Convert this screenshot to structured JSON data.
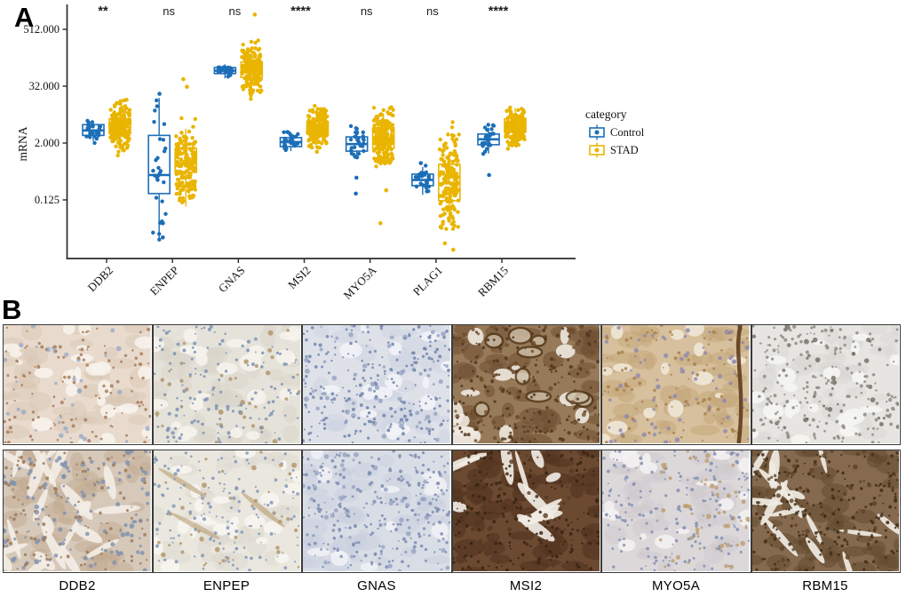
{
  "panel_a": {
    "label": "A",
    "chart_data": {
      "type": "boxplot-jitter",
      "ylabel": "mRNA",
      "yscale": "log2",
      "ytick_labels": [
        "512.000",
        "32.000",
        "2.000",
        "0.125"
      ],
      "ytick_values": [
        512,
        32,
        2,
        0.125
      ],
      "categories": [
        "DDB2",
        "ENPEP",
        "GNAS",
        "MSI2",
        "MYO5A",
        "PLAG1",
        "RBM15"
      ],
      "significance": [
        "**",
        "ns",
        "ns",
        "****",
        "ns",
        "ns",
        "****"
      ],
      "legend_title": "category",
      "legend_position": "right",
      "grid": false,
      "groups": [
        {
          "name": "Control",
          "color": "#1C6EB7",
          "offset": -15,
          "n_points": 28,
          "jitter": 8,
          "stats": [
            {
              "gene": "DDB2",
              "low": 2.2,
              "q1": 2.9,
              "median": 3.7,
              "q3": 4.9,
              "high": 5.8,
              "pt_min": 1.9,
              "pt_max": 6.2,
              "extra": []
            },
            {
              "gene": "ENPEP",
              "low": 0.018,
              "q1": 0.17,
              "median": 0.42,
              "q3": 2.9,
              "high": 18,
              "pt_min": 0.018,
              "pt_max": 22,
              "extra": [
                22,
                0.02,
                0.04
              ]
            },
            {
              "gene": "GNAS",
              "low": 47,
              "q1": 59,
              "median": 68,
              "q3": 79,
              "high": 93,
              "pt_min": 44,
              "pt_max": 105,
              "extra": []
            },
            {
              "gene": "MSI2",
              "low": 1.35,
              "q1": 1.68,
              "median": 2.1,
              "q3": 2.6,
              "high": 3.4,
              "pt_min": 1.1,
              "pt_max": 3.6,
              "extra": []
            },
            {
              "gene": "MYO5A",
              "low": 0.9,
              "q1": 1.35,
              "median": 1.9,
              "q3": 2.7,
              "high": 3.5,
              "pt_min": 0.9,
              "pt_max": 4.6,
              "extra": [
                0.37,
                0.17
              ]
            },
            {
              "gene": "PLAG1",
              "low": 0.16,
              "q1": 0.25,
              "median": 0.33,
              "q3": 0.44,
              "high": 0.62,
              "pt_min": 0.17,
              "pt_max": 0.68,
              "extra": [
                0.75
              ]
            },
            {
              "gene": "RBM15",
              "low": 1.2,
              "q1": 1.84,
              "median": 2.4,
              "q3": 3.1,
              "high": 4.2,
              "pt_min": 1.1,
              "pt_max": 5.0,
              "extra": [
                0.42
              ]
            }
          ]
        },
        {
          "name": "STAD",
          "color": "#E9B500",
          "offset": 15,
          "n_points": 175,
          "jitter": 11,
          "stats": [
            {
              "gene": "DDB2",
              "low": 1.6,
              "q1": 3.2,
              "median": 4.3,
              "q3": 6.5,
              "high": 9.5,
              "pt_min": 1.0,
              "pt_max": 17,
              "extra": [
                14,
                16
              ]
            },
            {
              "gene": "ENPEP",
              "low": 0.09,
              "q1": 0.48,
              "median": 0.75,
              "q3": 1.55,
              "high": 4.0,
              "pt_min": 0.07,
              "pt_max": 20,
              "extra": [
                45,
                31
              ]
            },
            {
              "gene": "GNAS",
              "low": 25,
              "q1": 49,
              "median": 72,
              "q3": 103,
              "high": 200,
              "pt_min": 12,
              "pt_max": 310,
              "extra": [
                1050
              ]
            },
            {
              "gene": "MSI2",
              "low": 1.9,
              "q1": 3.1,
              "median": 4.2,
              "q3": 5.7,
              "high": 8.5,
              "pt_min": 1.2,
              "pt_max": 13,
              "extra": [
                1.3
              ]
            },
            {
              "gene": "MYO5A",
              "low": 0.75,
              "q1": 1.54,
              "median": 2.5,
              "q3": 4.2,
              "high": 8.0,
              "pt_min": 0.6,
              "pt_max": 13,
              "extra": [
                0.04,
                0.2
              ]
            },
            {
              "gene": "PLAG1",
              "low": 0.047,
              "q1": 0.12,
              "median": 0.28,
              "q3": 0.71,
              "high": 1.3,
              "pt_min": 0.03,
              "pt_max": 6.0,
              "extra": [
                0.011,
                0.015
              ]
            },
            {
              "gene": "RBM15",
              "low": 2.0,
              "q1": 3.4,
              "median": 4.7,
              "q3": 6.5,
              "high": 11,
              "pt_min": 1.3,
              "pt_max": 12,
              "extra": []
            }
          ]
        }
      ]
    }
  },
  "panel_b": {
    "label": "B",
    "labels": [
      "DDB2",
      "ENPEP",
      "GNAS",
      "MSI2",
      "MYO5A",
      "RBM15"
    ],
    "tiles": [
      {
        "gene": "DDB2",
        "row": 1,
        "base": "#e8dacd",
        "mottle": "#dac5b4",
        "mottle_n": 42,
        "mottle_op": 0.45,
        "white": "#f7f2ec",
        "white_n": 24,
        "white_elong": false,
        "dots1": "#a87c5c",
        "dots1_n": 120,
        "dots2": "#9aaac6",
        "dots2_n": 35,
        "rings": false,
        "streak": false,
        "diag": false,
        "bias2": false
      },
      {
        "gene": "ENPEP",
        "row": 1,
        "base": "#e5e2d9",
        "mottle": "#d6d3c7",
        "mottle_n": 40,
        "mottle_op": 0.45,
        "white": "#f5f3ec",
        "white_n": 26,
        "white_elong": false,
        "dots1": "#7d92b4",
        "dots1_n": 150,
        "dots2": "#ac9266",
        "dots2_n": 35,
        "rings": false,
        "streak": false,
        "diag": false,
        "bias2": false
      },
      {
        "gene": "GNAS",
        "row": 1,
        "base": "#dfe1e9",
        "mottle": "#cdd2e0",
        "mottle_n": 40,
        "mottle_op": 0.45,
        "white": "#f2f3f7",
        "white_n": 16,
        "white_elong": false,
        "dots1": "#7085ac",
        "dots1_n": 230,
        "dots2": "#93a2c0",
        "dots2_n": 60,
        "rings": false,
        "streak": false,
        "diag": false,
        "bias2": false
      },
      {
        "gene": "MSI2",
        "row": 1,
        "base": "#977a5a",
        "mottle": "#6f5033",
        "mottle_n": 55,
        "mottle_op": 0.55,
        "white": "#efe9e0",
        "white_n": 12,
        "white_elong": false,
        "dots1": "#503720",
        "dots1_n": 190,
        "dots2": "#6d4c2a",
        "dots2_n": 70,
        "rings": true,
        "streak": false,
        "diag": false,
        "bias2": false
      },
      {
        "gene": "MYO5A",
        "row": 1,
        "base": "#d7c09d",
        "mottle": "#c3a578",
        "mottle_n": 48,
        "mottle_op": 0.5,
        "white": "#f0e7d7",
        "white_n": 14,
        "white_elong": false,
        "dots1": "#a87f4e",
        "dots1_n": 100,
        "dots2": "#8f87ac",
        "dots2_n": 80,
        "rings": false,
        "streak": true,
        "diag": false,
        "bias2": false
      },
      {
        "gene": "RBM15",
        "row": 1,
        "base": "#e6e5e2",
        "mottle": "#d7d5d0",
        "mottle_n": 40,
        "mottle_op": 0.45,
        "white": "#f5f5f3",
        "white_n": 20,
        "white_elong": false,
        "dots1": "#8e8b83",
        "dots1_n": 200,
        "dots2": "#6f6a60",
        "dots2_n": 45,
        "rings": false,
        "streak": false,
        "diag": false,
        "bias2": false
      },
      {
        "gene": "DDB2",
        "row": 2,
        "base": "#d6c9ba",
        "mottle": "#c0a991",
        "mottle_n": 48,
        "mottle_op": 0.45,
        "white": "#f3ede5",
        "white_n": 22,
        "white_elong": true,
        "dots1": "#9c7a58",
        "dots1_n": 120,
        "dots2": "#7e90ae",
        "dots2_n": 130,
        "rings": false,
        "streak": false,
        "diag": false,
        "bias2": false
      },
      {
        "gene": "ENPEP",
        "row": 2,
        "base": "#eae7df",
        "mottle": "#dbd8ce",
        "mottle_n": 38,
        "mottle_op": 0.45,
        "white": "#f7f5ef",
        "white_n": 26,
        "white_elong": false,
        "dots1": "#8296b6",
        "dots1_n": 150,
        "dots2": "#b09468",
        "dots2_n": 40,
        "rings": false,
        "streak": false,
        "diag": true,
        "bias2": false
      },
      {
        "gene": "GNAS",
        "row": 2,
        "base": "#d9dde6",
        "mottle": "#c8cfdd",
        "mottle_n": 45,
        "mottle_op": 0.45,
        "white": "#eff1f5",
        "white_n": 14,
        "white_elong": false,
        "dots1": "#7b8db0",
        "dots1_n": 240,
        "dots2": "#95a3c2",
        "dots2_n": 60,
        "rings": false,
        "streak": false,
        "diag": false,
        "bias2": false
      },
      {
        "gene": "MSI2",
        "row": 2,
        "base": "#6b4a31",
        "mottle": "#513420",
        "mottle_n": 58,
        "mottle_op": 0.6,
        "white": "#f1ece4",
        "white_n": 12,
        "white_elong": true,
        "dots1": "#3a2410",
        "dots1_n": 210,
        "dots2": "#573a22",
        "dots2_n": 60,
        "rings": false,
        "streak": false,
        "diag": false,
        "bias2": false
      },
      {
        "gene": "MYO5A",
        "row": 2,
        "base": "#dcd8da",
        "mottle": "#cdc7cb",
        "mottle_n": 40,
        "mottle_op": 0.45,
        "white": "#f3f1f2",
        "white_n": 20,
        "white_elong": false,
        "dots1": "#8190b2",
        "dots1_n": 180,
        "dots2": "#bd9c6e",
        "dots2_n": 60,
        "rings": false,
        "streak": false,
        "diag": false,
        "bias2": true
      },
      {
        "gene": "RBM15",
        "row": 2,
        "base": "#866a4f",
        "mottle": "#654a30",
        "mottle_n": 52,
        "mottle_op": 0.55,
        "white": "#f0ebe3",
        "white_n": 16,
        "white_elong": true,
        "dots1": "#422d18",
        "dots1_n": 220,
        "dots2": "#5d4227",
        "dots2_n": 60,
        "rings": false,
        "streak": false,
        "diag": false,
        "bias2": false
      }
    ]
  }
}
